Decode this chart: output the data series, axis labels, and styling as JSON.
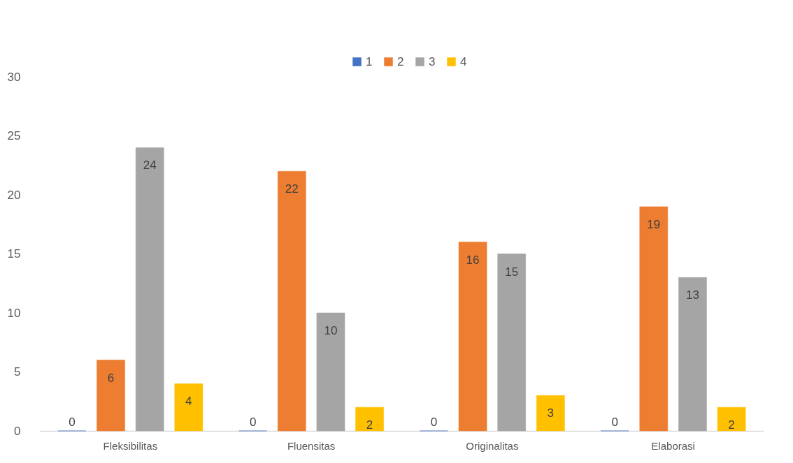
{
  "chart_data": {
    "type": "bar",
    "categories": [
      "Fleksibilitas",
      "Fluensitas",
      "Originalitas",
      "Elaborasi"
    ],
    "series": [
      {
        "name": "1",
        "color": "#4472c4",
        "values": [
          0,
          0,
          0,
          0
        ]
      },
      {
        "name": "2",
        "color": "#ed7d31",
        "values": [
          6,
          22,
          16,
          19
        ]
      },
      {
        "name": "3",
        "color": "#a5a5a5",
        "values": [
          24,
          10,
          15,
          13
        ]
      },
      {
        "name": "4",
        "color": "#ffc000",
        "values": [
          4,
          2,
          3,
          2
        ]
      }
    ],
    "ylim": [
      0,
      30
    ],
    "yticks": [
      0,
      5,
      10,
      15,
      20,
      25,
      30
    ],
    "grid": false,
    "legend": "top",
    "data_labels": true
  }
}
